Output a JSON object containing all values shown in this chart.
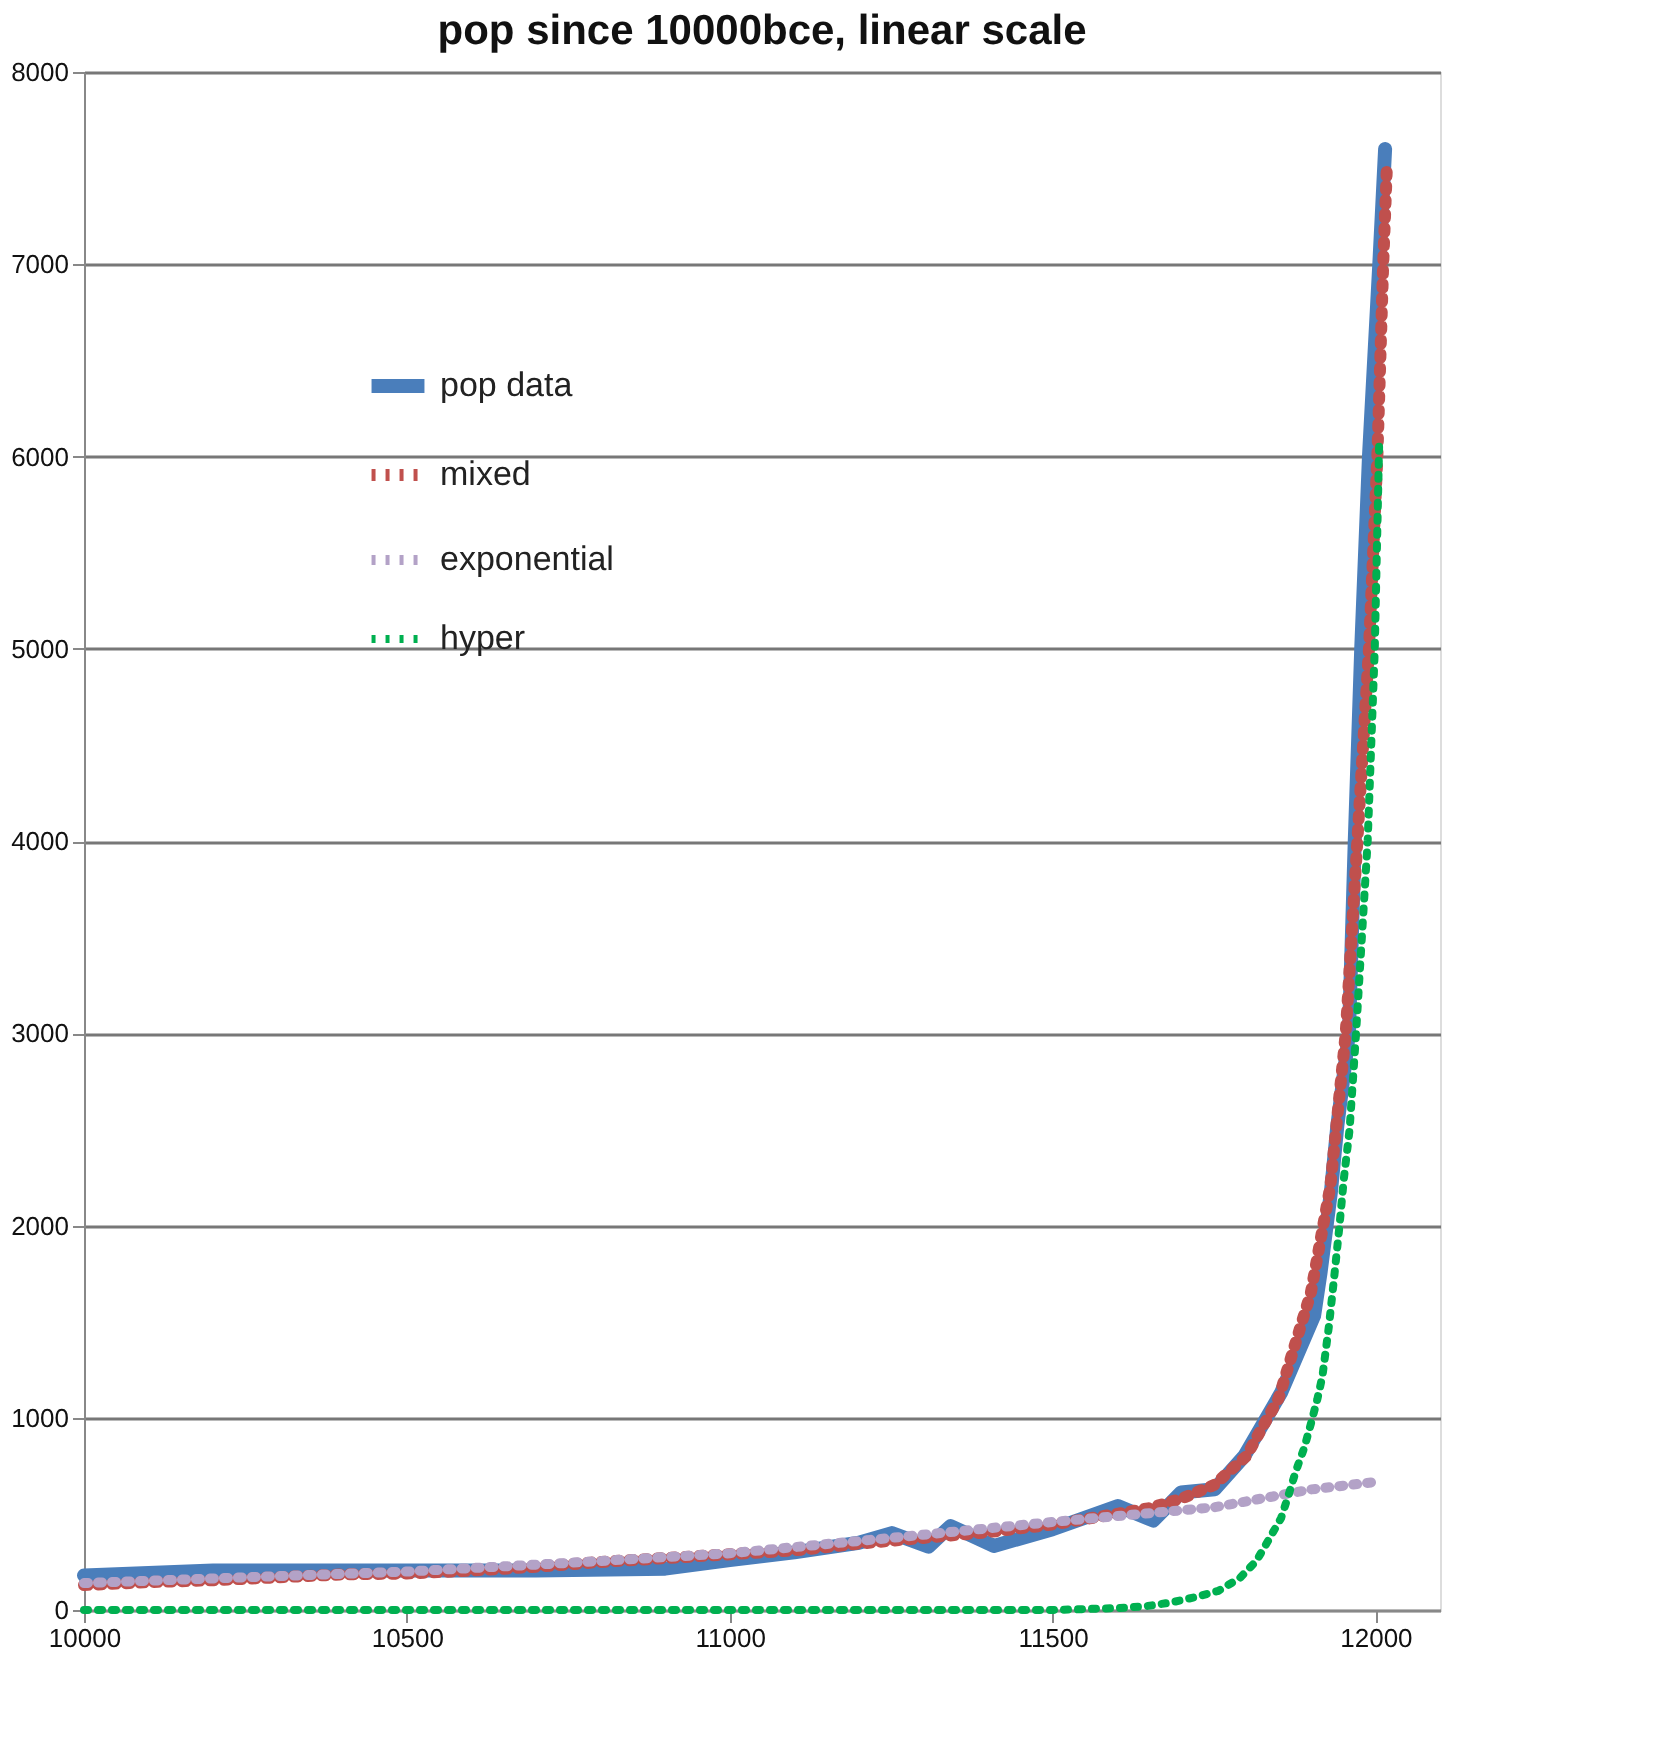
{
  "chart_data": {
    "type": "line",
    "title": "pop since 10000bce,  linear scale",
    "xlim": [
      10000,
      12100
    ],
    "xticks": [
      10000,
      10500,
      11000,
      11500,
      12000
    ],
    "ylim": [
      0,
      8000
    ],
    "yticks": [
      0,
      1000,
      2000,
      3000,
      4000,
      5000,
      6000,
      7000,
      8000
    ],
    "grid": "y",
    "legend": "top left",
    "series": [
      {
        "name": "pop data",
        "color": "#4a7ebb",
        "line_style": "solid",
        "x": [
          10000,
          10200,
          10400,
          10700,
          10900,
          11000,
          11100,
          11200,
          11251,
          11308,
          11342,
          11409,
          11500,
          11601,
          11656,
          11699,
          11751,
          11797,
          11854,
          11905,
          11915,
          11931,
          11941,
          11959,
          11968,
          11978,
          11990,
          12006,
          12015
        ],
        "values": [
          180,
          205,
          205,
          205,
          215,
          260,
          300,
          350,
          400,
          330,
          437,
          333,
          420,
          541,
          465,
          611,
          628,
          801,
          1131,
          1530,
          1755,
          2172,
          2518,
          3000,
          4000,
          5000,
          6000,
          7000,
          7600
        ]
      },
      {
        "name": "mixed",
        "color": "#c0504d",
        "line_style": "dotted",
        "x": [
          10000,
          10100,
          10200,
          10300,
          10400,
          10500,
          10600,
          10700,
          10800,
          10900,
          11000,
          11100,
          11200,
          11300,
          11400,
          11500,
          11600,
          11650,
          11700,
          11750,
          11800,
          11850,
          11900,
          11930,
          11954,
          11972,
          11990,
          12003,
          12012,
          12018
        ],
        "values": [
          130,
          145,
          155,
          170,
          185,
          190,
          205,
          225,
          250,
          270,
          290,
          310,
          345,
          375,
          405,
          445,
          500,
          530,
          580,
          650,
          800,
          1100,
          1650,
          2200,
          3000,
          4000,
          5000,
          6000,
          7000,
          7530
        ]
      },
      {
        "name": "exponential",
        "color": "#b3a2c7",
        "line_style": "dotted",
        "x": [
          10000,
          10250,
          10500,
          10750,
          11000,
          11250,
          11500,
          11750,
          11900,
          12000
        ],
        "values": [
          140,
          170,
          200,
          245,
          295,
          375,
          458,
          534,
          627,
          666
        ]
      },
      {
        "name": "hyper",
        "color": "#00b050",
        "line_style": "dotted",
        "x": [
          10000,
          10500,
          11000,
          11500,
          11603,
          11645,
          11682,
          11720,
          11757,
          11790,
          11816,
          11835,
          11854,
          11866,
          11877,
          11890,
          11900,
          11910,
          11918,
          11928,
          11936,
          11944,
          11951,
          11960,
          11970,
          11988,
          11999,
          12006
        ],
        "values": [
          0,
          0,
          0,
          0,
          10,
          20,
          38,
          66,
          100,
          166,
          257,
          367,
          479,
          604,
          725,
          846,
          968,
          1096,
          1218,
          1478,
          1727,
          1988,
          2240,
          2500,
          3000,
          4000,
          5000,
          6100
        ]
      }
    ]
  }
}
